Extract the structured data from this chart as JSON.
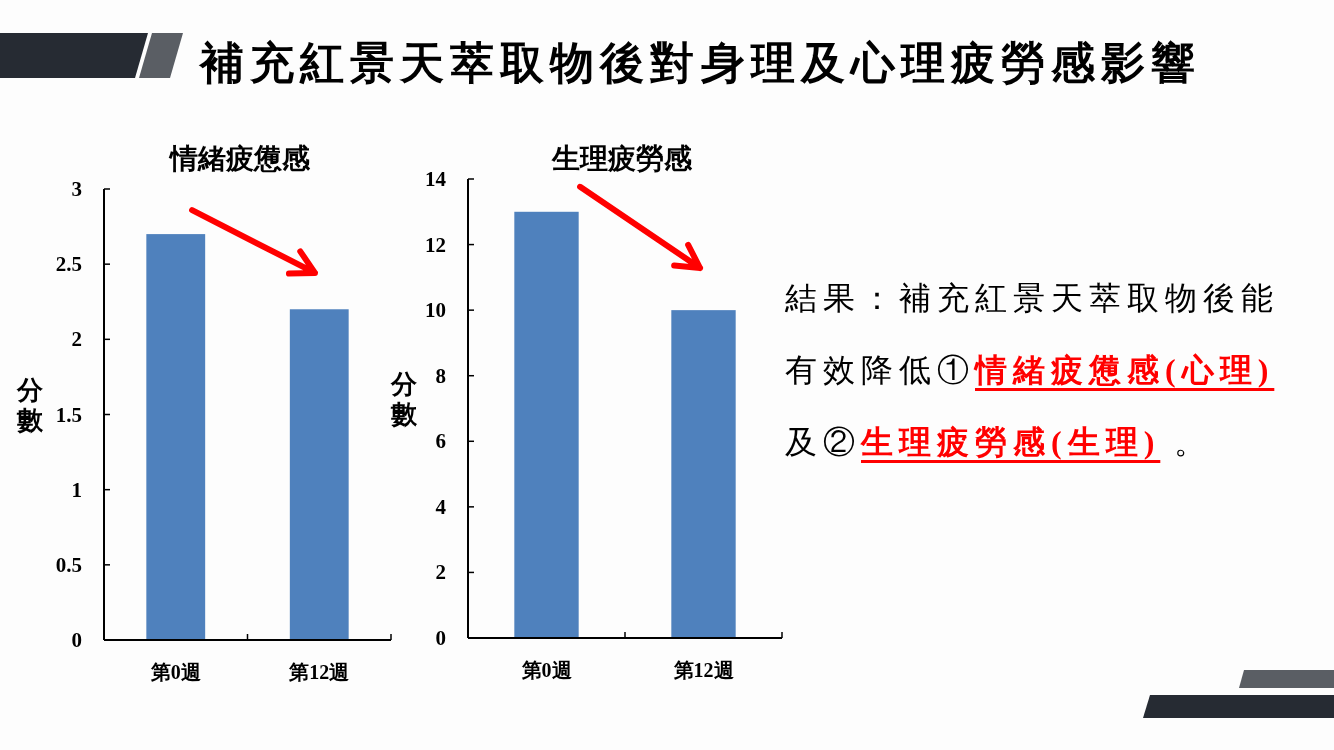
{
  "chart_data": [
    {
      "type": "other",
      "title": "補充紅景天萃取物後對身理及心理疲勞感影響"
    },
    {
      "type": "bar",
      "title": "情緒疲憊感",
      "ylabel": "分數",
      "categories": [
        "第0週",
        "第12週"
      ],
      "values": [
        2.7,
        2.2
      ],
      "color": "#4f81bd",
      "ylim": [
        0,
        3
      ],
      "yticks": [
        0,
        0.5,
        1,
        1.5,
        2,
        2.5,
        3
      ]
    },
    {
      "type": "bar",
      "title": "生理疲勞感",
      "ylabel": "分數",
      "categories": [
        "第0週",
        "第12週"
      ],
      "values": [
        13,
        10
      ],
      "color": "#4f81bd",
      "ylim": [
        0,
        14
      ],
      "yticks": [
        0,
        2,
        4,
        6,
        8,
        10,
        12,
        14
      ]
    },
    {
      "type": "other",
      "annotations": [
        "結果：補充紅景天萃取物後能",
        "有效降低①",
        "情緒疲憊感(心理)",
        "及②",
        "生理疲勞感(生理)",
        " 。"
      ]
    }
  ]
}
